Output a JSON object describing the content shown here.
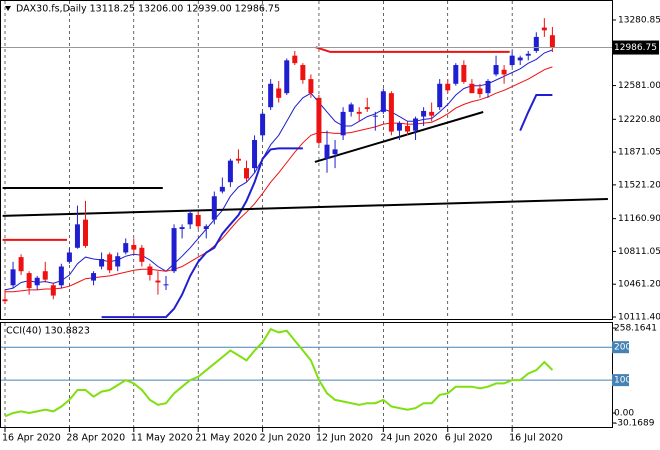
{
  "chart_data": [
    {
      "type": "candlestick",
      "header": "DAX30.fs,Daily  13118.25 13206.00 12939.00 12986.75",
      "price_label": "12986.75",
      "up_color": "#1f1fd0",
      "down_color": "#ee1111",
      "grid": true,
      "categories": [
        "16 Apr 2020",
        null,
        null,
        null,
        null,
        null,
        null,
        null,
        "28 Apr 2020",
        null,
        null,
        null,
        null,
        null,
        null,
        null,
        "11 May 2020",
        null,
        null,
        null,
        null,
        null,
        null,
        null,
        "21 May 2020",
        null,
        null,
        null,
        null,
        null,
        null,
        null,
        "2 Jun 2020",
        null,
        null,
        null,
        null,
        null,
        null,
        "12 Jun 2020",
        null,
        null,
        null,
        null,
        null,
        null,
        null,
        "24 Jun 2020",
        null,
        null,
        null,
        null,
        null,
        null,
        null,
        "6 Jul 2020",
        null,
        null,
        null,
        null,
        null,
        null,
        null,
        "16 Jul 2020",
        null,
        null,
        null,
        null,
        null
      ],
      "open": [
        10300,
        10450,
        10750,
        10580,
        10450,
        10600,
        10450,
        10450,
        10700,
        10850,
        11150,
        10500,
        10650,
        10780,
        10650,
        10800,
        10880,
        10850,
        10650,
        10500,
        10450,
        10600,
        11050,
        11100,
        11200,
        11050,
        11150,
        11450,
        11550,
        11800,
        11700,
        11700,
        12050,
        12350,
        12550,
        12500,
        12900,
        12800,
        12650,
        12450,
        11800,
        11850,
        12050,
        12300,
        12300,
        12350,
        12250,
        12300,
        12500,
        12100,
        12150,
        12100,
        12250,
        12300,
        12350,
        12600,
        12600,
        12800,
        12600,
        12550,
        12500,
        12700,
        12750,
        12800,
        12850,
        12900,
        12950,
        13200,
        13118.25
      ],
      "high": [
        10400,
        10700,
        10780,
        10600,
        10550,
        10700,
        10480,
        10680,
        10850,
        11300,
        11350,
        10600,
        10800,
        10800,
        10800,
        10950,
        10950,
        10880,
        10680,
        10600,
        10550,
        11100,
        11100,
        11250,
        11230,
        11100,
        11450,
        11600,
        11800,
        11900,
        11780,
        12050,
        12300,
        12650,
        12630,
        12870,
        12950,
        12820,
        12700,
        12480,
        12100,
        12000,
        12350,
        12400,
        12350,
        12450,
        12300,
        12550,
        12520,
        12200,
        12200,
        12250,
        12350,
        12400,
        12650,
        12650,
        12820,
        12850,
        12650,
        12600,
        12650,
        12900,
        12800,
        12950,
        12900,
        12950,
        13150,
        13300,
        13206
      ],
      "low": [
        10250,
        10420,
        10560,
        10350,
        10400,
        10480,
        10300,
        10420,
        10680,
        10840,
        10850,
        10450,
        10620,
        10580,
        10600,
        10780,
        10780,
        10650,
        10500,
        10350,
        10400,
        10580,
        10950,
        11050,
        11050,
        10950,
        11100,
        11430,
        11500,
        11750,
        11550,
        11650,
        12000,
        12320,
        12400,
        12480,
        12800,
        12600,
        12450,
        11950,
        11650,
        11700,
        12000,
        12250,
        12200,
        12300,
        12100,
        12280,
        12050,
        12000,
        12050,
        12000,
        12150,
        12200,
        12320,
        12500,
        12580,
        12600,
        12500,
        12450,
        12450,
        12680,
        12600,
        12780,
        12800,
        12850,
        12930,
        13100,
        12939
      ],
      "close": [
        10280,
        10620,
        10600,
        10420,
        10530,
        10510,
        10340,
        10650,
        10800,
        11100,
        10870,
        10580,
        10730,
        10610,
        10760,
        10900,
        10830,
        10700,
        10560,
        10480,
        10460,
        11060,
        11070,
        11220,
        11080,
        11080,
        11400,
        11500,
        11780,
        11780,
        11590,
        12000,
        12280,
        12600,
        12450,
        12850,
        12820,
        12640,
        12500,
        11970,
        11950,
        11900,
        12300,
        12380,
        12280,
        12330,
        12260,
        12520,
        12090,
        12180,
        12090,
        12230,
        12310,
        12260,
        12600,
        12530,
        12800,
        12620,
        12500,
        12490,
        12630,
        12800,
        12700,
        12900,
        12880,
        12920,
        13100,
        13170,
        12986.75
      ],
      "lines": [
        {
          "color": "#1f1fd0",
          "width": 1,
          "values": [
            10400,
            10420,
            10480,
            10500,
            10480,
            10490,
            10470,
            10500,
            10560,
            10680,
            10750,
            10730,
            10720,
            10700,
            10720,
            10760,
            10780,
            10770,
            10720,
            10650,
            10600,
            10680,
            10760,
            10850,
            10950,
            11050,
            11150,
            11250,
            11400,
            11500,
            11550,
            11650,
            11800,
            11950,
            12050,
            12200,
            12350,
            12450,
            12500,
            12400,
            12300,
            12200,
            12150,
            12150,
            12200,
            12250,
            12280,
            12330,
            12300,
            12250,
            12200,
            12200,
            12220,
            12230,
            12300,
            12380,
            12480,
            12550,
            12580,
            12580,
            12600,
            12640,
            12680,
            12720,
            12760,
            12820,
            12860,
            12930,
            12960
          ]
        },
        {
          "color": "#ee1111",
          "width": 1,
          "values": [
            10380,
            10380,
            10390,
            10400,
            10400,
            10410,
            10410,
            10420,
            10440,
            10480,
            10520,
            10530,
            10540,
            10550,
            10570,
            10590,
            10610,
            10620,
            10620,
            10610,
            10600,
            10620,
            10650,
            10700,
            10750,
            10800,
            10870,
            10950,
            11050,
            11150,
            11230,
            11320,
            11430,
            11550,
            11650,
            11760,
            11870,
            11970,
            12050,
            12080,
            12080,
            12070,
            12070,
            12080,
            12100,
            12120,
            12140,
            12170,
            12180,
            12180,
            12170,
            12170,
            12180,
            12190,
            12230,
            12280,
            12340,
            12380,
            12410,
            12430,
            12460,
            12500,
            12530,
            12570,
            12610,
            12650,
            12700,
            12750,
            12780
          ]
        },
        {
          "color": "#1f1fd0",
          "width": 2,
          "values": [
            null,
            null,
            null,
            null,
            null,
            null,
            null,
            null,
            null,
            null,
            null,
            null,
            10110,
            10110,
            10110,
            10110,
            10110,
            10110,
            10110,
            10110,
            10110,
            10200,
            10350,
            10550,
            10700,
            10800,
            10850,
            11000,
            11100,
            11200,
            11350,
            11550,
            11800,
            11900,
            11910,
            11910,
            11910,
            11910,
            null,
            null,
            null,
            null,
            null,
            null,
            null,
            null,
            null,
            null,
            null,
            null,
            null,
            null,
            null,
            null,
            null,
            null,
            null,
            null,
            null,
            null,
            null,
            null,
            null,
            null,
            12100,
            12300,
            12480,
            12480,
            12480
          ]
        }
      ],
      "segments": [
        {
          "color": "#000000",
          "width": 2,
          "x": [
            -0.3,
            74.9
          ],
          "y": [
            11190,
            11371
          ]
        },
        {
          "color": "#000000",
          "width": 2,
          "x": [
            -0.3,
            19.6
          ],
          "y": [
            11488,
            11488
          ]
        },
        {
          "color": "#ee1111",
          "width": 2,
          "x": [
            -0.3,
            7.7
          ],
          "y": [
            10934,
            10934
          ]
        },
        {
          "color": "#ee1111",
          "width": 2,
          "x": [
            38.6,
            40.4,
            62.7
          ],
          "y": [
            12990,
            12940,
            12940
          ]
        },
        {
          "color": "#000000",
          "width": 2,
          "x": [
            38.5,
            59.4
          ],
          "y": [
            11766,
            12299
          ]
        }
      ],
      "ylim": [
        10090,
        13462
      ],
      "yticks": [
        13280.85,
        {
          "value": 12581.0,
          "label": "12581.00"
        },
        {
          "value": 12220.8,
          "label": "12220.80"
        },
        11871.05,
        {
          "value": 11521.2,
          "label": "11521.20"
        },
        {
          "value": 11160.9,
          "label": "11160.90"
        },
        10811.05,
        {
          "value": 10461.2,
          "label": "10461.20"
        },
        {
          "value": 10111.4,
          "label": "10111.40"
        }
      ]
    },
    {
      "type": "line",
      "label": "CCI(40) 130.8823",
      "color": "#7fe010",
      "level_color": "#4682b4",
      "values": [
        -10,
        0,
        5,
        0,
        5,
        10,
        5,
        20,
        40,
        70,
        70,
        50,
        65,
        70,
        85,
        100,
        90,
        70,
        40,
        25,
        30,
        60,
        80,
        100,
        110,
        130,
        150,
        170,
        190,
        175,
        160,
        190,
        215,
        255,
        245,
        250,
        220,
        190,
        160,
        100,
        60,
        40,
        35,
        30,
        25,
        30,
        30,
        40,
        20,
        15,
        10,
        15,
        30,
        30,
        55,
        60,
        80,
        80,
        80,
        75,
        80,
        90,
        90,
        100,
        100,
        120,
        130,
        155,
        130.8823
      ],
      "ylim": [
        -42.4,
        273.5
      ],
      "yticks": [
        258.1641,
        200,
        100,
        {
          "value": 0,
          "label": "0.00"
        },
        -30.1689
      ],
      "levels": [
        200,
        100
      ]
    }
  ]
}
